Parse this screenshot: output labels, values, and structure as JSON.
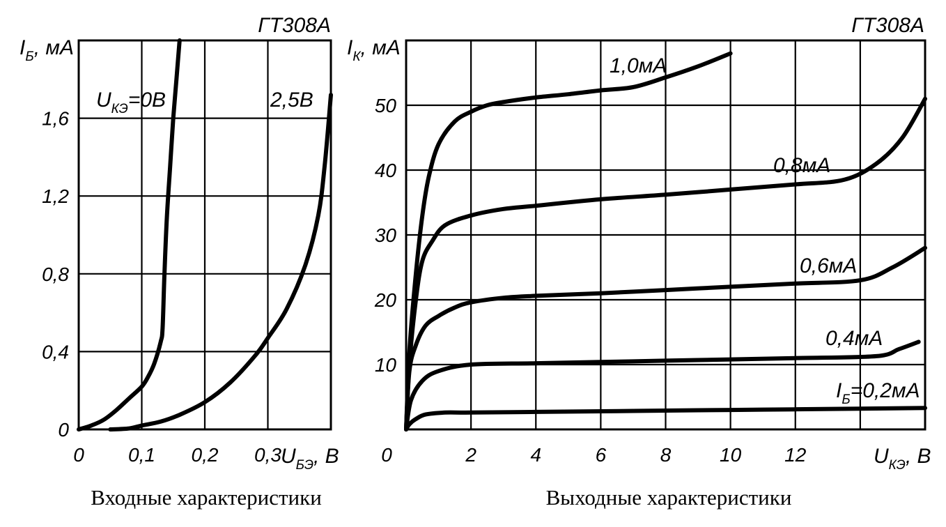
{
  "chart_data": [
    {
      "type": "line",
      "model": "ГТ308А",
      "caption": "Входные характеристики",
      "ylabel": {
        "main": "I",
        "sub": "Б",
        "unit": ", мА"
      },
      "xlabel": {
        "main": "U",
        "sub": "БЭ",
        "unit": ", В"
      },
      "xlim": [
        0,
        0.4
      ],
      "ylim": [
        0,
        2.0
      ],
      "xticks": [
        {
          "v": 0,
          "t": "0"
        },
        {
          "v": 0.1,
          "t": "0,1"
        },
        {
          "v": 0.2,
          "t": "0,2"
        },
        {
          "v": 0.3,
          "t": "0,3"
        }
      ],
      "yticks": [
        {
          "v": 0,
          "t": "0"
        },
        {
          "v": 0.4,
          "t": "0,4"
        },
        {
          "v": 0.8,
          "t": "0,8"
        },
        {
          "v": 1.2,
          "t": "1,2"
        },
        {
          "v": 1.6,
          "t": "1,6"
        }
      ],
      "series": [
        {
          "label": {
            "main": "U",
            "sub": "КЭ",
            "rest": "=0В"
          },
          "x": [
            0,
            0.02,
            0.04,
            0.06,
            0.08,
            0.1,
            0.11,
            0.12,
            0.13,
            0.133,
            0.136,
            0.14,
            0.145,
            0.15,
            0.155,
            0.16
          ],
          "y": [
            0,
            0.02,
            0.05,
            0.1,
            0.16,
            0.22,
            0.27,
            0.34,
            0.45,
            0.52,
            0.8,
            1.1,
            1.35,
            1.6,
            1.8,
            2.0
          ]
        },
        {
          "label": {
            "main": "",
            "sub": "",
            "rest": "2,5В"
          },
          "x": [
            0.05,
            0.08,
            0.1,
            0.13,
            0.16,
            0.2,
            0.24,
            0.28,
            0.3,
            0.33,
            0.36,
            0.38,
            0.39,
            0.4
          ],
          "y": [
            0,
            0.005,
            0.02,
            0.04,
            0.075,
            0.14,
            0.24,
            0.38,
            0.47,
            0.62,
            0.85,
            1.1,
            1.35,
            1.72
          ]
        }
      ]
    },
    {
      "type": "line",
      "model": "ГТ308А",
      "caption": "Выходные характеристики",
      "ylabel": {
        "main": "I",
        "sub": "К",
        "unit": ", мА"
      },
      "xlabel": {
        "main": "U",
        "sub": "КЭ",
        "unit": ", В"
      },
      "xlim": [
        0,
        16
      ],
      "ylim": [
        0,
        60
      ],
      "xticks": [
        {
          "v": 0,
          "t": "0"
        },
        {
          "v": 2,
          "t": "2"
        },
        {
          "v": 4,
          "t": "4"
        },
        {
          "v": 6,
          "t": "6"
        },
        {
          "v": 8,
          "t": "8"
        },
        {
          "v": 10,
          "t": "10"
        },
        {
          "v": 12,
          "t": "12"
        }
      ],
      "yticks": [
        {
          "v": 10,
          "t": "10"
        },
        {
          "v": 20,
          "t": "20"
        },
        {
          "v": 30,
          "t": "30"
        },
        {
          "v": 40,
          "t": "40"
        },
        {
          "v": 50,
          "t": "50"
        }
      ],
      "series": [
        {
          "label": {
            "main": "I",
            "sub": "Б",
            "rest": "=0,2мА"
          },
          "x": [
            0,
            0.1,
            0.3,
            0.6,
            1.2,
            2,
            4,
            6,
            8,
            10,
            12,
            14,
            16
          ],
          "y": [
            0,
            0.8,
            1.6,
            2.3,
            2.6,
            2.6,
            2.7,
            2.8,
            2.9,
            3.0,
            3.1,
            3.2,
            3.3
          ]
        },
        {
          "label": {
            "main": "",
            "sub": "",
            "rest": "0,4мА"
          },
          "x": [
            0,
            0.15,
            0.5,
            1,
            2,
            4,
            6,
            8,
            10,
            12,
            14.5,
            15.2,
            15.8
          ],
          "y": [
            0,
            4.5,
            7.5,
            9,
            10,
            10.2,
            10.4,
            10.6,
            10.8,
            11,
            11.3,
            12.4,
            13.5
          ]
        },
        {
          "label": {
            "main": "",
            "sub": "",
            "rest": "0,6мА"
          },
          "x": [
            0,
            0.1,
            0.3,
            0.6,
            1,
            1.5,
            2,
            3,
            4,
            6,
            8,
            10,
            12,
            14,
            15,
            16
          ],
          "y": [
            0,
            9,
            13,
            16,
            17.5,
            18.8,
            19.6,
            20.3,
            20.6,
            21,
            21.5,
            22,
            22.5,
            23,
            25,
            28
          ]
        },
        {
          "label": {
            "main": "",
            "sub": "",
            "rest": "0,8мА"
          },
          "x": [
            0,
            0.1,
            0.3,
            0.5,
            0.8,
            1.2,
            2,
            3,
            4,
            6,
            8,
            10,
            12,
            13.5,
            14.5,
            15.3,
            16
          ],
          "y": [
            0,
            10,
            20,
            26,
            29,
            31.5,
            33,
            34,
            34.5,
            35.5,
            36.2,
            37,
            37.8,
            38.5,
            41,
            45,
            51
          ]
        },
        {
          "label": {
            "main": "",
            "sub": "",
            "rest": "1,0мА"
          },
          "x": [
            0,
            0.1,
            0.3,
            0.5,
            0.7,
            1,
            1.5,
            2,
            2.5,
            3,
            4,
            5,
            6,
            7,
            8,
            9,
            10
          ],
          "y": [
            0,
            12,
            24,
            33,
            39,
            44,
            47.5,
            49,
            50,
            50.5,
            51.2,
            51.7,
            52.3,
            52.8,
            54.3,
            56,
            58
          ]
        }
      ]
    }
  ]
}
